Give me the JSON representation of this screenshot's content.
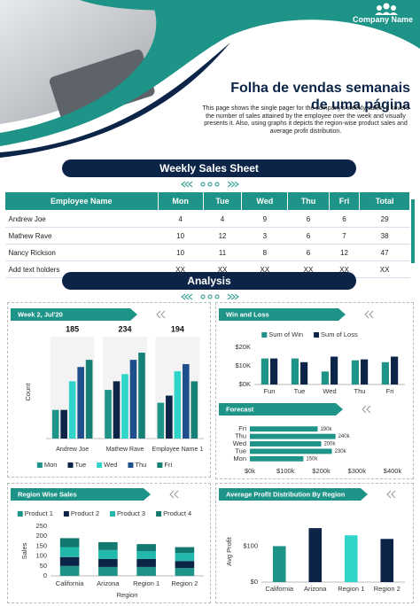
{
  "header": {
    "company": "Company Name",
    "title": "Folha de vendas semanais de uma página",
    "description": "This page shows the single pager for the company’s weekly sales. It covers the number of sales attained by the employee over the week and visually presents it. Also, using graphs it depicts the region-wise product sales and average profit distribution."
  },
  "weekly_title": "Weekly Sales Sheet",
  "table": {
    "header": [
      "Employee Name",
      "Mon",
      "Tue",
      "Wed",
      "Thu",
      "Fri",
      "Total"
    ],
    "rows": [
      [
        "Andrew Joe",
        4,
        4,
        9,
        6,
        6,
        29
      ],
      [
        "Mathew Rave",
        10,
        12,
        3,
        6,
        7,
        38
      ],
      [
        "Nancy Rickson",
        10,
        11,
        8,
        6,
        12,
        47
      ],
      [
        "Add text holders",
        "XX",
        "XX",
        "XX",
        "XX",
        "XX",
        "XX"
      ]
    ]
  },
  "analysis_title": "Analysis",
  "chart_data": [
    {
      "type": "bar",
      "title": "Week 2, Jul'20",
      "ylabel": "Count",
      "categories": [
        "Andrew Joe",
        "Mathew Rave",
        "Employee Name 1"
      ],
      "ylim": [
        0,
        65
      ],
      "series": [
        {
          "name": "Mon",
          "color": "#1e9488",
          "values": [
            20,
            34,
            25
          ]
        },
        {
          "name": "Tue",
          "color": "#0b2447",
          "values": [
            20,
            40,
            30
          ]
        },
        {
          "name": "Wed",
          "color": "#2fd5c9",
          "values": [
            40,
            45,
            47
          ]
        },
        {
          "name": "Thu",
          "color": "#1f4e8c",
          "values": [
            50,
            55,
            52
          ]
        },
        {
          "name": "Fri",
          "color": "#168077",
          "values": [
            55,
            60,
            40
          ]
        }
      ],
      "totals": [
        185,
        234,
        194
      ]
    },
    {
      "type": "bar",
      "title": "Win and Loss",
      "categories": [
        "Fun",
        "Tue",
        "Wed",
        "Thu",
        "Fri"
      ],
      "ylim": [
        0,
        20000
      ],
      "yticks": [
        {
          "value": 0,
          "label": "$0K"
        },
        {
          "value": 10000,
          "label": "$10K"
        },
        {
          "value": 20000,
          "label": "$20K"
        }
      ],
      "series": [
        {
          "name": "Sum of Win",
          "color": "#1e9488",
          "values": [
            14000,
            14000,
            7000,
            13000,
            12000
          ]
        },
        {
          "name": "Sum of Loss",
          "color": "#0b2447",
          "values": [
            14000,
            12000,
            15000,
            13500,
            15000
          ]
        }
      ]
    },
    {
      "type": "barh",
      "title": "Forecast",
      "categories": [
        "Fri",
        "Thu",
        "Wed",
        "Tue",
        "Mon"
      ],
      "values": [
        190000,
        240000,
        200000,
        230000,
        150000
      ],
      "value_labels": [
        "190k",
        "240k",
        "200k",
        "230k",
        "150k"
      ],
      "color": "#1e9488",
      "xlim": [
        0,
        400000
      ],
      "xticks": [
        {
          "value": 0,
          "label": "$0k"
        },
        {
          "value": 100000,
          "label": "$100k"
        },
        {
          "value": 200000,
          "label": "$200k"
        },
        {
          "value": 300000,
          "label": "$300k"
        },
        {
          "value": 400000,
          "label": "$400k"
        }
      ]
    },
    {
      "type": "stacked",
      "title": "Region Wise Sales",
      "ylabel": "Sales",
      "xlabel": "Region",
      "categories": [
        "California",
        "Arizona",
        "Region 1",
        "Region 2"
      ],
      "ylim": [
        0,
        250
      ],
      "yticks": [
        0,
        50,
        100,
        150,
        200,
        250
      ],
      "series": [
        {
          "name": "Product 1",
          "color": "#1e9488",
          "values": [
            50,
            45,
            45,
            40
          ]
        },
        {
          "name": "Product 2",
          "color": "#0b2447",
          "values": [
            45,
            40,
            40,
            35
          ]
        },
        {
          "name": "Product 3",
          "color": "#22b8ac",
          "values": [
            50,
            45,
            40,
            40
          ]
        },
        {
          "name": "Product 4",
          "color": "#13786f",
          "values": [
            45,
            40,
            35,
            30
          ]
        }
      ]
    },
    {
      "type": "bar",
      "title": "Average Profit Distribution  By Region",
      "ylabel": "Avg Profit",
      "categories": [
        "California",
        "Arizona",
        "Region 1",
        "Region 2"
      ],
      "values": [
        100,
        150,
        130,
        120
      ],
      "colors": [
        "#1e9488",
        "#0b2447",
        "#2fd5c9",
        "#0b2447"
      ],
      "ylim": [
        0,
        170
      ],
      "yticks": [
        {
          "value": 0,
          "label": "$0"
        },
        {
          "value": 100,
          "label": "$100"
        }
      ]
    }
  ]
}
